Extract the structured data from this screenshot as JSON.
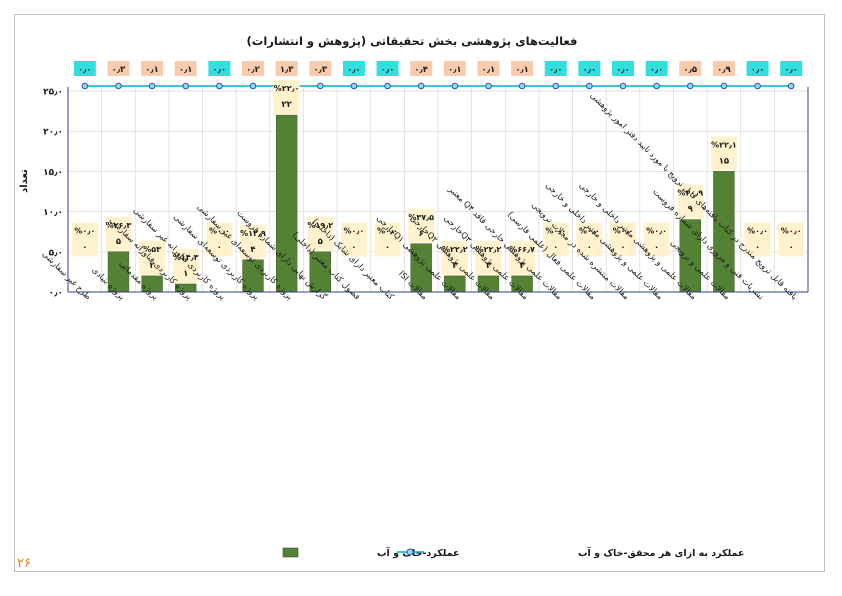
{
  "page": {
    "page_number": "۲۶"
  },
  "chart_data": {
    "type": "bar",
    "title": "فعالیت‌های پژوهشی بخش تحقیقاتی (پژوهش و انتشارات)",
    "ylabel": "تعداد",
    "xlabel": "",
    "ylim": [
      0,
      25
    ],
    "y_ticks": [
      "۰٫۰",
      "۵٫۰",
      "۱۰٫۰",
      "۱۵٫۰",
      "۲۰٫۰",
      "۲۵٫۰"
    ],
    "grid": true,
    "legend_position": "bottom",
    "colors": {
      "bar": "#548235",
      "line": "#00b0c8",
      "marker_fill": "#9ad4f0",
      "marker_stroke": "#1f5fa6",
      "top_label_teal": "#33dede",
      "top_label_peach": "#f8cbad",
      "bar_label_bg": "#fff2cc"
    },
    "categories": [
      "طرح غیر سفارشی",
      "پروژه بنیادی",
      "پروژه مقدماتی",
      "پروژه کاربردی فناورانه سفارشی",
      "پروژه کاربردی فناورانه غیر سفارشی",
      "پروژه کاربردی توسعه‌ای سفارشی",
      "پروژه کاربردی توسعه‌ای غیر سفارشی",
      "گزارش نهایی دارای شماره فروست",
      "فصول کتاب معتبر (داخلی)",
      "کتاب معتبر دارای شابک (داخلی)",
      "مقالات ISI",
      "مقالات علمی پژوهشی Q۱خارجی",
      "مقالات علمی پژوهشی Q۲خارجی",
      "مقالات علمی پژوهشی Q۳خارجی",
      "مقالات علمی پژوهشی خارجی فاقد Q۴ معتبر",
      "مقالات علمی فعال (علمی فارسی)",
      "مقالات منتشره شده در مجلات ترویجی",
      "مقالات علمی و پژوهشی معتبر داخلی و خارجی",
      "مقالات علمی و پژوهشی معتبر داخلی و خارجی",
      "مقالات علمی و ترویجی",
      "نشریات فنی و مروری دارای شماره فروست",
      "یافته قابل ترویج مندرج در کتاب یافته‌های قابل ترویج با مورد تایید دفتر امور پژوهشی"
    ],
    "series": [
      {
        "name": "عملکرد-خاک و آب",
        "type": "bar",
        "values": [
          0,
          5,
          2,
          1,
          0,
          4,
          22,
          5,
          0,
          0,
          6,
          2,
          2,
          2,
          0,
          0,
          0,
          0,
          9,
          15,
          0,
          0
        ],
        "value_labels": [
          "۰",
          "۵",
          "۲",
          "۱",
          "۰",
          "۴",
          "۲۲",
          "۵",
          "۰",
          "۰",
          "۶",
          "۲",
          "۲",
          "۲",
          "۰",
          "۰",
          "۰",
          "۰",
          "۹",
          "۱۵",
          "۰",
          "۰"
        ],
        "percent_labels": [
          "%۰٫۰",
          "%۲۶٫۳",
          "%۵۳",
          "%۱۴٫۳",
          "%۰٫۰",
          "%۱۲٫۹",
          "%۲۲٫۰",
          "%۱۹٫۲",
          "%۰٫۰",
          "%۰٫۰",
          "%۳۷٫۵",
          "%۲۲٫۲",
          "%۲۲٫۲",
          "%۶۶٫۷",
          "%۰٫۰",
          "%۰٫۰",
          "%۰٫۰",
          "%۰٫۰",
          "%۲۰٫۹",
          "%۲۲٫۱",
          "%۰٫۰",
          "%۰٫۰"
        ]
      },
      {
        "name": "عملکرد به ازای هر محقق-خاک و آب",
        "type": "line",
        "values": [
          0.0,
          0.3,
          0.1,
          0.1,
          0.0,
          0.2,
          1.3,
          0.3,
          0.0,
          0.0,
          0.4,
          0.1,
          0.1,
          0.1,
          0.0,
          0.0,
          0.0,
          0.0,
          0.5,
          0.9,
          0.0,
          0.0
        ],
        "value_labels": [
          "۰٫۰",
          "۰٫۳",
          "۰٫۱",
          "۰٫۱",
          "۰٫۰",
          "۰٫۲",
          "۱٫۳",
          "۰٫۳",
          "۰٫۰",
          "۰٫۰",
          "۰٫۴",
          "۰٫۱",
          "۰٫۱",
          "۰٫۱",
          "۰٫۰",
          "۰٫۰",
          "۰٫۰",
          "۰٫۰",
          "۰٫۵",
          "۰٫۹",
          "۰٫۰",
          "۰٫۰"
        ]
      }
    ]
  }
}
